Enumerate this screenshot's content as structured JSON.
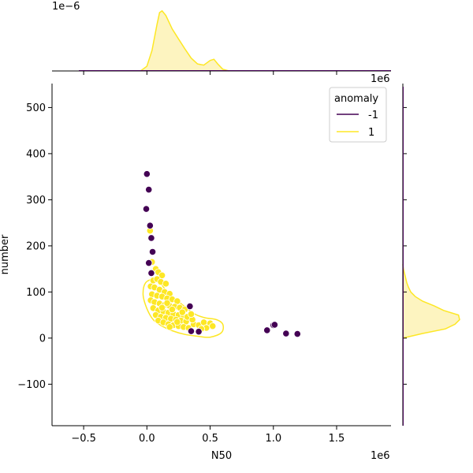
{
  "chart_data": {
    "type": "scatter",
    "hue_title": "anomaly",
    "xlabel": "N50",
    "ylabel": "number",
    "x_offset_text": "1e6",
    "y_offset_text": "1e6",
    "top_marginal_offset_text": "1e−6",
    "xlim": [
      -0.75,
      1.93
    ],
    "ylim": [
      -190,
      552
    ],
    "x_unit": 1000000,
    "x_ticks": [
      -0.5,
      0.0,
      0.5,
      1.0,
      1.5
    ],
    "x_tick_labels": [
      "−0.5",
      "0.0",
      "0.5",
      "1.0",
      "1.5"
    ],
    "y_ticks": [
      -100,
      0,
      100,
      200,
      300,
      400,
      500
    ],
    "y_tick_labels": [
      "−100",
      "0",
      "100",
      "200",
      "300",
      "400",
      "500"
    ],
    "legend": {
      "title": "anomaly",
      "position": "top-right",
      "entries": [
        {
          "label": "-1",
          "color": "#440154"
        },
        {
          "label": "1",
          "color": "#fde725"
        }
      ]
    },
    "colors": {
      "anomaly_-1": "#440154",
      "anomaly_1": "#fde725",
      "fill_1": "#fdf4c0"
    },
    "series": [
      {
        "name": "-1",
        "points": [
          [
            0.0,
            356
          ],
          [
            0.015,
            322
          ],
          [
            -0.005,
            280
          ],
          [
            0.025,
            244
          ],
          [
            0.035,
            217
          ],
          [
            0.045,
            187
          ],
          [
            0.015,
            163
          ],
          [
            0.035,
            141
          ],
          [
            0.34,
            69
          ],
          [
            0.35,
            15
          ],
          [
            0.41,
            14
          ],
          [
            0.95,
            17
          ],
          [
            1.0,
            28
          ],
          [
            1.01,
            29
          ],
          [
            1.1,
            10
          ],
          [
            1.19,
            9
          ]
        ]
      },
      {
        "name": "1",
        "points": [
          [
            0.025,
            233
          ],
          [
            0.04,
            165
          ],
          [
            0.07,
            150
          ],
          [
            0.09,
            143
          ],
          [
            0.12,
            136
          ],
          [
            0.05,
            125
          ],
          [
            0.08,
            128
          ],
          [
            0.11,
            122
          ],
          [
            0.15,
            118
          ],
          [
            0.03,
            112
          ],
          [
            0.06,
            110
          ],
          [
            0.1,
            105
          ],
          [
            0.14,
            100
          ],
          [
            0.18,
            96
          ],
          [
            0.04,
            95
          ],
          [
            0.08,
            92
          ],
          [
            0.12,
            90
          ],
          [
            0.16,
            86
          ],
          [
            0.2,
            84
          ],
          [
            0.24,
            80
          ],
          [
            0.03,
            82
          ],
          [
            0.06,
            78
          ],
          [
            0.1,
            75
          ],
          [
            0.14,
            72
          ],
          [
            0.18,
            70
          ],
          [
            0.22,
            68
          ],
          [
            0.26,
            66
          ],
          [
            0.3,
            62
          ],
          [
            0.05,
            65
          ],
          [
            0.09,
            60
          ],
          [
            0.13,
            58
          ],
          [
            0.17,
            55
          ],
          [
            0.21,
            52
          ],
          [
            0.25,
            50
          ],
          [
            0.29,
            48
          ],
          [
            0.07,
            50
          ],
          [
            0.11,
            46
          ],
          [
            0.15,
            44
          ],
          [
            0.19,
            42
          ],
          [
            0.23,
            40
          ],
          [
            0.27,
            38
          ],
          [
            0.31,
            36
          ],
          [
            0.09,
            38
          ],
          [
            0.13,
            34
          ],
          [
            0.17,
            30
          ],
          [
            0.21,
            28
          ],
          [
            0.25,
            26
          ],
          [
            0.29,
            24
          ],
          [
            0.33,
            22
          ],
          [
            0.37,
            30
          ],
          [
            0.41,
            28
          ],
          [
            0.45,
            34
          ],
          [
            0.5,
            32
          ],
          [
            0.52,
            26
          ],
          [
            0.47,
            22
          ],
          [
            0.43,
            20
          ],
          [
            0.2,
            62
          ],
          [
            0.28,
            56
          ],
          [
            0.32,
            46
          ],
          [
            0.36,
            40
          ],
          [
            0.16,
            76
          ],
          [
            0.12,
            66
          ],
          [
            0.24,
            35
          ],
          [
            0.18,
            24
          ],
          [
            0.35,
            52
          ]
        ]
      }
    ],
    "kde_1_contour": [
      [
        -0.01,
        120
      ],
      [
        0.06,
        128
      ],
      [
        0.11,
        118
      ],
      [
        0.16,
        100
      ],
      [
        0.22,
        86
      ],
      [
        0.3,
        68
      ],
      [
        0.38,
        52
      ],
      [
        0.46,
        44
      ],
      [
        0.55,
        40
      ],
      [
        0.6,
        30
      ],
      [
        0.59,
        12
      ],
      [
        0.5,
        2
      ],
      [
        0.4,
        4
      ],
      [
        0.3,
        8
      ],
      [
        0.2,
        16
      ],
      [
        0.12,
        26
      ],
      [
        0.05,
        40
      ],
      [
        0.0,
        64
      ],
      [
        -0.03,
        94
      ]
    ],
    "marginal_top_1": {
      "x": [
        -0.05,
        0.0,
        0.04,
        0.08,
        0.1,
        0.12,
        0.15,
        0.2,
        0.25,
        0.3,
        0.35,
        0.4,
        0.45,
        0.5,
        0.53,
        0.56,
        0.6,
        0.65
      ],
      "density": [
        0.0,
        0.08,
        0.35,
        0.8,
        1.0,
        1.03,
        0.95,
        0.72,
        0.55,
        0.38,
        0.22,
        0.12,
        0.1,
        0.18,
        0.2,
        0.12,
        0.03,
        0.0
      ]
    },
    "marginal_right_1": {
      "y": [
        0,
        10,
        20,
        30,
        40,
        50,
        60,
        70,
        80,
        90,
        100,
        110,
        120,
        130,
        140,
        150,
        160
      ],
      "density": [
        0.0,
        0.35,
        0.75,
        0.92,
        1.0,
        0.98,
        0.72,
        0.55,
        0.35,
        0.22,
        0.14,
        0.1,
        0.07,
        0.05,
        0.03,
        0.01,
        0.0
      ]
    }
  }
}
